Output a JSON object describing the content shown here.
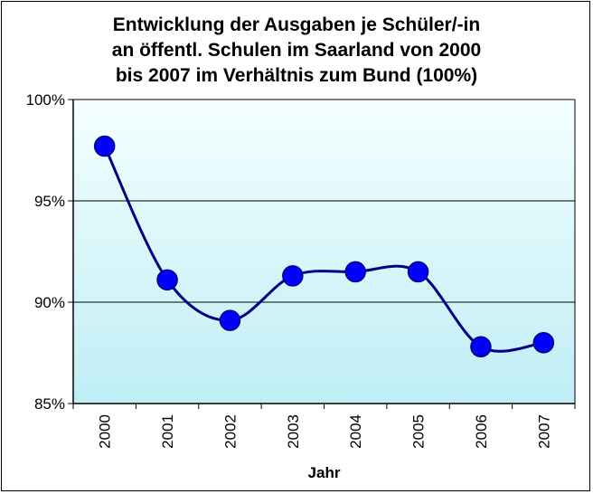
{
  "chart_data": {
    "type": "line",
    "title_lines": [
      "Entwicklung der Ausgaben je Schüler/-in",
      "an öffentl. Schulen im Saarland von 2000",
      "bis 2007 im Verhältnis zum Bund (100%)"
    ],
    "xlabel": "Jahr",
    "ylabel": "",
    "categories": [
      "2000",
      "2001",
      "2002",
      "2003",
      "2004",
      "2005",
      "2006",
      "2007"
    ],
    "values": [
      97.7,
      91.1,
      89.1,
      91.3,
      91.5,
      91.5,
      87.8,
      88.0
    ],
    "ylim": [
      85,
      100
    ],
    "yticks": [
      85,
      90,
      95,
      100
    ],
    "ytick_labels": [
      "85%",
      "90%",
      "95%",
      "100%"
    ],
    "smooth": true,
    "grid": "horizontal",
    "legend": "none",
    "colors": {
      "line": "#000080",
      "marker": "#0000ff",
      "plot_bg_top": "#f4ffff",
      "plot_bg_bottom": "#bfeef5"
    }
  }
}
